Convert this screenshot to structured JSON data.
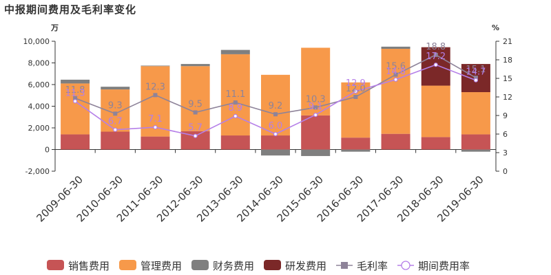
{
  "title": "中报期间费用及毛利率变化",
  "chart_data": {
    "type": "bar",
    "stacked": true,
    "categories": [
      "2009-06-30",
      "2010-06-30",
      "2011-06-30",
      "2012-06-30",
      "2013-06-30",
      "2014-06-30",
      "2015-06-30",
      "2016-06-30",
      "2017-06-30",
      "2018-06-30",
      "2019-06-30"
    ],
    "left_unit": "万",
    "right_unit": "%",
    "left_ylim": [
      -2000,
      10000
    ],
    "left_ticks": [
      "-2,000",
      "0",
      "2,000",
      "4,000",
      "6,000",
      "8,000",
      "10,000"
    ],
    "right_ylim": [
      0,
      21
    ],
    "right_ticks": [
      "0",
      "3",
      "6",
      "9",
      "12",
      "15",
      "18",
      "21"
    ],
    "grid": false,
    "legend_position": "bottom",
    "series": [
      {
        "name": "销售费用",
        "type": "bar",
        "axis": "left",
        "color": "#c65455",
        "values": [
          1400,
          1650,
          1200,
          1700,
          1300,
          1300,
          3150,
          1100,
          1450,
          1150,
          1400
        ]
      },
      {
        "name": "管理费用",
        "type": "bar",
        "axis": "left",
        "color": "#f7994a",
        "values": [
          4700,
          3900,
          6500,
          6000,
          7500,
          5600,
          6250,
          5100,
          7850,
          4750,
          3900
        ]
      },
      {
        "name": "财务费用",
        "type": "bar",
        "axis": "left",
        "color": "#7f7f7f",
        "values": [
          350,
          250,
          50,
          200,
          400,
          -550,
          -600,
          -200,
          200,
          0,
          -200
        ]
      },
      {
        "name": "研发费用",
        "type": "bar",
        "axis": "left",
        "color": "#7b2828",
        "values": [
          0,
          0,
          0,
          0,
          0,
          0,
          0,
          0,
          0,
          3550,
          2600
        ]
      },
      {
        "name": "毛利率",
        "type": "line",
        "axis": "right",
        "color": "#8e8399",
        "marker": "square",
        "values": [
          11.8,
          9.3,
          12.3,
          9.5,
          11.1,
          9.2,
          10.3,
          12.0,
          15.6,
          18.8,
          15.1
        ]
      },
      {
        "name": "期间费用率",
        "type": "line",
        "axis": "right",
        "color": "#b57fe8",
        "marker": "circle",
        "values": [
          11.3,
          6.7,
          7.1,
          5.7,
          8.9,
          6.0,
          9.1,
          12.9,
          14.8,
          17.2,
          14.7
        ]
      }
    ]
  }
}
